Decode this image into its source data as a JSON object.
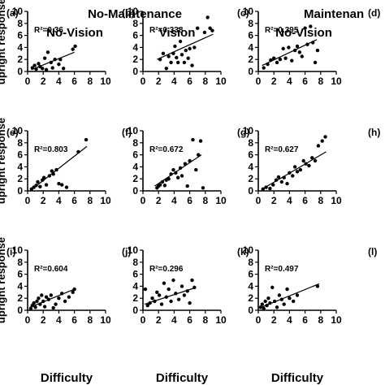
{
  "figure": {
    "group_headers": [
      "No-Maintenance",
      "Maintenan"
    ],
    "column_headers": [
      "No-Vision",
      "Vision",
      "No-Vision"
    ],
    "ylabel": "upright response",
    "xlabel": "Difficulty"
  },
  "chart_data": [
    {
      "type": "scatter",
      "panel": "(a)",
      "r2_label": "R²=0.36",
      "xlim": [
        0,
        10
      ],
      "ylim": [
        0,
        10
      ],
      "xticks": [
        0,
        2,
        4,
        6,
        8,
        10
      ],
      "yticks": [
        0,
        2,
        4,
        6,
        8,
        10
      ],
      "fit": [
        [
          0.5,
          0.3
        ],
        [
          6.0,
          3.2
        ]
      ],
      "x": [
        0.6,
        0.9,
        1.1,
        1.4,
        1.6,
        1.9,
        2.2,
        2.4,
        2.6,
        3.0,
        3.2,
        3.5,
        4.0,
        4.2,
        4.6,
        5.8,
        6.1
      ],
      "y": [
        0.6,
        1.0,
        0.4,
        1.3,
        0.8,
        0.5,
        2.2,
        0.3,
        3.2,
        1.5,
        0.6,
        2.0,
        1.2,
        2.0,
        0.5,
        3.7,
        4.2
      ]
    },
    {
      "type": "scatter",
      "panel": "(b)",
      "r2_label": "R²=0.338",
      "xlim": [
        0,
        10
      ],
      "ylim": [
        0,
        10
      ],
      "xticks": [
        0,
        2,
        4,
        6,
        8,
        10
      ],
      "yticks": [
        0,
        2,
        4,
        6,
        8,
        10
      ],
      "fit": [
        [
          1.8,
          2.0
        ],
        [
          9.0,
          6.2
        ]
      ],
      "x": [
        2.2,
        2.6,
        3.0,
        3.3,
        3.6,
        3.9,
        4.1,
        4.3,
        4.5,
        4.8,
        5.0,
        5.3,
        5.5,
        5.8,
        6.0,
        6.3,
        6.6,
        7.0,
        7.9,
        8.3,
        8.6,
        8.9
      ],
      "y": [
        2.0,
        3.0,
        0.5,
        2.5,
        1.5,
        3.0,
        4.2,
        2.3,
        1.5,
        5.0,
        2.8,
        1.5,
        3.5,
        2.2,
        3.8,
        1.0,
        4.0,
        7.2,
        6.5,
        9.0,
        7.2,
        6.8
      ]
    },
    {
      "type": "scatter",
      "panel": "(c)",
      "r2_label": "R²=0.395",
      "xlim": [
        0,
        10
      ],
      "ylim": [
        0,
        10
      ],
      "xticks": [
        0,
        2,
        4,
        6,
        8,
        10
      ],
      "yticks": [
        0,
        2,
        4,
        6,
        8,
        10
      ],
      "fit": [
        [
          0.5,
          1.0
        ],
        [
          7.5,
          5.3
        ]
      ],
      "x": [
        0.7,
        1.2,
        1.6,
        2.0,
        2.4,
        2.8,
        3.2,
        3.5,
        3.9,
        4.3,
        4.7,
        5.0,
        5.3,
        5.6,
        6.0,
        6.3,
        6.7,
        7.0,
        7.3,
        7.6
      ],
      "y": [
        0.6,
        1.2,
        1.9,
        2.2,
        1.5,
        2.0,
        3.8,
        2.2,
        4.0,
        1.8,
        3.5,
        4.2,
        3.2,
        2.5,
        7.2,
        4.5,
        7.5,
        4.8,
        1.5,
        3.5
      ]
    },
    {
      "type": "scatter",
      "panel": "(e)",
      "r2_label": "R²=0.803",
      "xlim": [
        0,
        10
      ],
      "ylim": [
        0,
        10
      ],
      "xticks": [
        0,
        2,
        4,
        6,
        8,
        10
      ],
      "yticks": [
        0,
        2,
        4,
        6,
        8,
        10
      ],
      "fit": [
        [
          0.5,
          0.2
        ],
        [
          7.6,
          7.4
        ]
      ],
      "x": [
        0.5,
        0.8,
        1.1,
        1.3,
        1.6,
        1.9,
        2.1,
        2.4,
        2.8,
        3.1,
        3.3,
        3.7,
        4.0,
        4.4,
        5.0,
        6.5,
        7.5
      ],
      "y": [
        0.3,
        0.6,
        0.9,
        1.5,
        0.7,
        1.8,
        2.2,
        1.0,
        2.5,
        3.3,
        2.8,
        3.5,
        1.2,
        1.0,
        0.6,
        6.5,
        8.5
      ]
    },
    {
      "type": "scatter",
      "panel": "(f)",
      "r2_label": "R²=0.672",
      "xlim": [
        0,
        10
      ],
      "ylim": [
        0,
        10
      ],
      "xticks": [
        0,
        2,
        4,
        6,
        8,
        10
      ],
      "yticks": [
        0,
        2,
        4,
        6,
        8,
        10
      ],
      "fit": [
        [
          1.5,
          0.8
        ],
        [
          7.5,
          6.0
        ]
      ],
      "x": [
        1.8,
        2.0,
        2.2,
        2.5,
        2.8,
        3.0,
        3.3,
        3.6,
        3.9,
        4.2,
        4.5,
        4.8,
        5.0,
        5.4,
        5.7,
        6.0,
        6.4,
        6.8,
        7.1,
        7.4,
        7.7
      ],
      "y": [
        0.5,
        0.8,
        1.0,
        1.5,
        0.9,
        1.8,
        2.0,
        2.8,
        3.5,
        3.0,
        2.2,
        3.8,
        2.5,
        4.5,
        0.8,
        5.0,
        8.5,
        3.5,
        6.0,
        8.3,
        0.5
      ]
    },
    {
      "type": "scatter",
      "panel": "(g)",
      "r2_label": "R²=0.627",
      "xlim": [
        0,
        10
      ],
      "ylim": [
        0,
        10
      ],
      "xticks": [
        0,
        2,
        4,
        6,
        8,
        10
      ],
      "yticks": [
        0,
        2,
        4,
        6,
        8,
        10
      ],
      "fit": [
        [
          0.5,
          0.3
        ],
        [
          8.7,
          6.5
        ]
      ],
      "x": [
        0.6,
        1.0,
        1.5,
        1.9,
        2.3,
        2.6,
        3.0,
        3.3,
        3.7,
        4.0,
        4.4,
        4.7,
        5.0,
        5.4,
        5.8,
        6.1,
        6.5,
        6.9,
        7.3,
        7.7,
        8.2,
        8.6
      ],
      "y": [
        0.3,
        0.6,
        0.4,
        1.0,
        1.8,
        2.3,
        1.5,
        2.2,
        1.2,
        3.0,
        2.5,
        4.0,
        3.2,
        3.5,
        5.0,
        4.5,
        4.2,
        5.5,
        5.0,
        7.5,
        8.3,
        9.0
      ]
    },
    {
      "type": "scatter",
      "panel": "(i)",
      "r2_label": "R²=0.604",
      "xlim": [
        0,
        10
      ],
      "ylim": [
        0,
        10
      ],
      "xticks": [
        0,
        2,
        4,
        6,
        8,
        10
      ],
      "yticks": [
        0,
        2,
        4,
        6,
        8,
        10
      ],
      "fit": [
        [
          0.3,
          0.5
        ],
        [
          6.2,
          3.6
        ]
      ],
      "x": [
        0.4,
        0.6,
        0.8,
        1.0,
        1.2,
        1.4,
        1.6,
        1.8,
        2.0,
        2.2,
        2.4,
        2.7,
        3.0,
        3.3,
        3.6,
        4.0,
        4.4,
        4.8,
        5.3,
        5.8,
        6.0
      ],
      "y": [
        0.3,
        0.8,
        1.2,
        0.5,
        1.5,
        2.0,
        1.0,
        2.5,
        1.5,
        0.6,
        2.2,
        1.8,
        2.5,
        0.4,
        1.0,
        2.0,
        2.8,
        1.5,
        2.2,
        3.0,
        3.5
      ]
    },
    {
      "type": "scatter",
      "panel": "(j)",
      "r2_label": "R²=0.296",
      "xlim": [
        0,
        10
      ],
      "ylim": [
        0,
        10
      ],
      "xticks": [
        0,
        2,
        4,
        6,
        8,
        10
      ],
      "yticks": [
        0,
        2,
        4,
        6,
        8,
        10
      ],
      "fit": [
        [
          0.2,
          1.0
        ],
        [
          6.6,
          3.7
        ]
      ],
      "x": [
        0.3,
        0.6,
        0.9,
        1.2,
        1.5,
        1.8,
        2.1,
        2.4,
        2.7,
        3.0,
        3.3,
        3.6,
        3.9,
        4.2,
        4.6,
        5.0,
        5.3,
        5.7,
        6.0,
        6.3,
        6.6
      ],
      "y": [
        3.5,
        0.8,
        1.2,
        2.0,
        1.5,
        3.0,
        2.5,
        1.0,
        4.5,
        2.2,
        3.5,
        1.5,
        5.0,
        2.8,
        1.8,
        4.0,
        2.5,
        3.2,
        1.2,
        5.0,
        3.8
      ]
    },
    {
      "type": "scatter",
      "panel": "(k)",
      "r2_label": "R²=0.497",
      "xlim": [
        0,
        10
      ],
      "ylim": [
        0,
        10
      ],
      "xticks": [
        0,
        2,
        4,
        6,
        8,
        10
      ],
      "yticks": [
        0,
        2,
        4,
        6,
        8,
        10
      ],
      "fit": [
        [
          0.2,
          0.4
        ],
        [
          7.8,
          4.4
        ]
      ],
      "x": [
        0.3,
        0.5,
        0.7,
        0.9,
        1.1,
        1.3,
        1.5,
        1.8,
        2.1,
        2.4,
        2.7,
        3.0,
        3.3,
        3.7,
        4.0,
        4.5,
        5.0,
        7.6
      ],
      "y": [
        0.5,
        1.0,
        0.3,
        1.5,
        0.8,
        2.0,
        1.2,
        3.8,
        1.5,
        0.5,
        2.5,
        1.8,
        1.0,
        3.5,
        2.0,
        1.5,
        2.5,
        4.0
      ]
    }
  ],
  "cut_panels": [
    "(d)",
    "(h)",
    "(l)"
  ]
}
